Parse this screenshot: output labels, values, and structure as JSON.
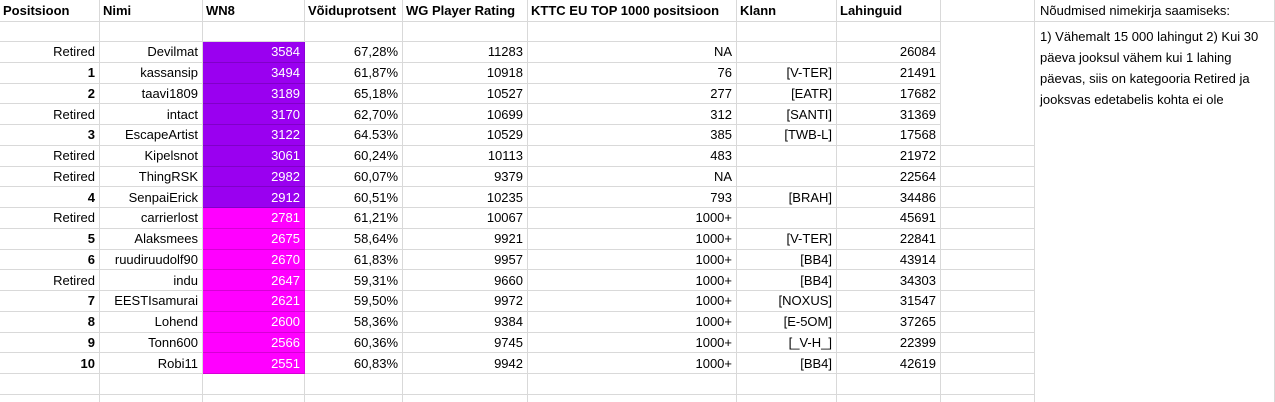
{
  "colors": {
    "purple": "#9a00f0",
    "magenta": "#ff00ff",
    "gridline": "#d9d9d9"
  },
  "notes": {
    "title": "Nõudmised nimekirja saamiseks:",
    "body": "1) Vähemalt 15 000 lahingut 2) Kui 30 päeva jooksul vähem kui 1 lahing päevas, siis on kategooria Retired ja jooksvas edetabelis kohta ei ole"
  },
  "table": {
    "columns": [
      {
        "key": "position",
        "label": "Positsioon"
      },
      {
        "key": "name",
        "label": "Nimi"
      },
      {
        "key": "wn8",
        "label": "WN8"
      },
      {
        "key": "win_rate",
        "label": "Võiduprotsent"
      },
      {
        "key": "wg_rating",
        "label": "WG Player Rating"
      },
      {
        "key": "kttc",
        "label": "KTTC EU TOP 1000 positsioon"
      },
      {
        "key": "clan",
        "label": "Klann"
      },
      {
        "key": "battles",
        "label": "Lahinguid"
      },
      {
        "key": "spacer",
        "label": ""
      }
    ],
    "rows": [
      {
        "position": "Retired",
        "name": "Devilmat",
        "wn8": "3584",
        "wn8_tier": "purple",
        "win_rate": "67,28%",
        "wg_rating": "11283",
        "kttc": "NA",
        "clan": "",
        "battles": "26084"
      },
      {
        "position": "1",
        "name": "kassansip",
        "wn8": "3494",
        "wn8_tier": "purple",
        "win_rate": "61,87%",
        "wg_rating": "10918",
        "kttc": "76",
        "clan": "[V-TER]",
        "battles": "21491"
      },
      {
        "position": "2",
        "name": "taavi1809",
        "wn8": "3189",
        "wn8_tier": "purple",
        "win_rate": "65,18%",
        "wg_rating": "10527",
        "kttc": "277",
        "clan": "[EATR]",
        "battles": "17682"
      },
      {
        "position": "Retired",
        "name": "intact",
        "wn8": "3170",
        "wn8_tier": "purple",
        "win_rate": "62,70%",
        "wg_rating": "10699",
        "kttc": "312",
        "clan": "[SANTI]",
        "battles": "31369"
      },
      {
        "position": "3",
        "name": "EscapeArtist",
        "wn8": "3122",
        "wn8_tier": "purple",
        "win_rate": "64.53%",
        "wg_rating": "10529",
        "kttc": "385",
        "clan": "[TWB-L]",
        "battles": "17568"
      },
      {
        "position": "Retired",
        "name": "Kipelsnot",
        "wn8": "3061",
        "wn8_tier": "purple",
        "win_rate": "60,24%",
        "wg_rating": "10113",
        "kttc": "483",
        "clan": "",
        "battles": "21972"
      },
      {
        "position": "Retired",
        "name": "ThingRSK",
        "wn8": "2982",
        "wn8_tier": "purple",
        "win_rate": "60,07%",
        "wg_rating": "9379",
        "kttc": "NA",
        "clan": "",
        "battles": "22564"
      },
      {
        "position": "4",
        "name": "SenpaiErick",
        "wn8": "2912",
        "wn8_tier": "purple",
        "win_rate": "60,51%",
        "wg_rating": "10235",
        "kttc": "793",
        "clan": "[BRAH]",
        "battles": "34486"
      },
      {
        "position": "Retired",
        "name": "carrierlost",
        "wn8": "2781",
        "wn8_tier": "magenta",
        "win_rate": "61,21%",
        "wg_rating": "10067",
        "kttc": "1000+",
        "clan": "",
        "battles": "45691"
      },
      {
        "position": "5",
        "name": "Alaksmees",
        "wn8": "2675",
        "wn8_tier": "magenta",
        "win_rate": "58,64%",
        "wg_rating": "9921",
        "kttc": "1000+",
        "clan": "[V-TER]",
        "battles": "22841"
      },
      {
        "position": "6",
        "name": "ruudiruudolf90",
        "wn8": "2670",
        "wn8_tier": "magenta",
        "win_rate": "61,83%",
        "wg_rating": "9957",
        "kttc": "1000+",
        "clan": "[BB4]",
        "battles": "43914"
      },
      {
        "position": "Retired",
        "name": "indu",
        "wn8": "2647",
        "wn8_tier": "magenta",
        "win_rate": "59,31%",
        "wg_rating": "9660",
        "kttc": "1000+",
        "clan": "[BB4]",
        "battles": "34303"
      },
      {
        "position": "7",
        "name": "EESTIsamurai",
        "wn8": "2621",
        "wn8_tier": "magenta",
        "win_rate": "59,50%",
        "wg_rating": "9972",
        "kttc": "1000+",
        "clan": "[NOXUS]",
        "battles": "31547"
      },
      {
        "position": "8",
        "name": "Lohend",
        "wn8": "2600",
        "wn8_tier": "magenta",
        "win_rate": "58,36%",
        "wg_rating": "9384",
        "kttc": "1000+",
        "clan": "[E-5OM]",
        "battles": "37265"
      },
      {
        "position": "9",
        "name": "Tonn600",
        "wn8": "2566",
        "wn8_tier": "magenta",
        "win_rate": "60,36%",
        "wg_rating": "9745",
        "kttc": "1000+",
        "clan": "[_V-H_]",
        "battles": "22399"
      },
      {
        "position": "10",
        "name": "Robi11",
        "wn8": "2551",
        "wn8_tier": "magenta",
        "win_rate": "60,83%",
        "wg_rating": "9942",
        "kttc": "1000+",
        "clan": "[BB4]",
        "battles": "42619"
      }
    ]
  }
}
